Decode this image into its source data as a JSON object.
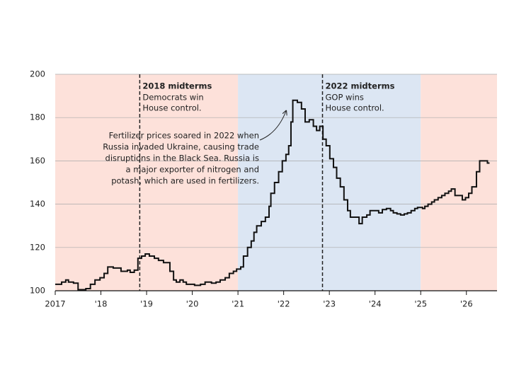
{
  "chart_data": {
    "type": "step-line",
    "xlim": [
      2017,
      2026.67
    ],
    "ylim": [
      100,
      200
    ],
    "yticks": [
      100,
      120,
      140,
      160,
      180,
      200
    ],
    "xticks": [
      {
        "value": 2017,
        "label": "2017"
      },
      {
        "value": 2018,
        "label": "'18"
      },
      {
        "value": 2019,
        "label": "'19"
      },
      {
        "value": 2020,
        "label": "'20"
      },
      {
        "value": 2021,
        "label": "'21"
      },
      {
        "value": 2022,
        "label": "'22"
      },
      {
        "value": 2023,
        "label": "'23"
      },
      {
        "value": 2024,
        "label": "'24"
      },
      {
        "value": 2025,
        "label": "'25"
      },
      {
        "value": 2026,
        "label": "'26"
      }
    ],
    "grid": true,
    "bands": [
      {
        "from": 2017,
        "to": 2021,
        "color": "#fde1da"
      },
      {
        "from": 2021,
        "to": 2025,
        "color": "#dce6f3"
      },
      {
        "from": 2025,
        "to": 2026.67,
        "color": "#fde1da"
      }
    ],
    "events": [
      {
        "x": 2018.85,
        "title": "2018 midterms",
        "lines": [
          "Democrats win",
          "House control."
        ]
      },
      {
        "x": 2022.85,
        "title": "2022 midterms",
        "lines": [
          "GOP wins",
          "House control."
        ]
      }
    ],
    "annotation": [
      "Fertilizer prices soared in 2022 when",
      "Russia invaded Ukraine, causing trade",
      "disruptions in the Black Sea. Russia is",
      "a major exporter of nitrogen and",
      "potash, which are used in fertilizers."
    ],
    "series": [
      {
        "color": "#111111",
        "x": [
          2017.0,
          2017.14,
          2017.23,
          2017.29,
          2017.4,
          2017.5,
          2017.67,
          2017.77,
          2017.87,
          2017.98,
          2018.07,
          2018.15,
          2018.27,
          2018.44,
          2018.58,
          2018.64,
          2018.73,
          2018.81,
          2018.89,
          2018.97,
          2019.06,
          2019.17,
          2019.26,
          2019.37,
          2019.51,
          2019.59,
          2019.65,
          2019.73,
          2019.8,
          2019.87,
          2020.05,
          2020.18,
          2020.28,
          2020.42,
          2020.52,
          2020.61,
          2020.72,
          2020.81,
          2020.9,
          2020.97,
          2021.06,
          2021.12,
          2021.21,
          2021.29,
          2021.35,
          2021.41,
          2021.51,
          2021.6,
          2021.68,
          2021.72,
          2021.8,
          2021.89,
          2021.97,
          2022.05,
          2022.11,
          2022.16,
          2022.2,
          2022.3,
          2022.39,
          2022.47,
          2022.56,
          2022.65,
          2022.72,
          2022.79,
          2022.86,
          2022.93,
          2023.01,
          2023.09,
          2023.16,
          2023.24,
          2023.32,
          2023.4,
          2023.46,
          2023.65,
          2023.72,
          2023.82,
          2023.89,
          2024.08,
          2024.16,
          2024.25,
          2024.34,
          2024.4,
          2024.48,
          2024.56,
          2024.64,
          2024.71,
          2024.79,
          2024.87,
          2024.93,
          2025.04,
          2025.09,
          2025.16,
          2025.24,
          2025.3,
          2025.38,
          2025.46,
          2025.53,
          2025.61,
          2025.67,
          2025.75,
          2025.91,
          2025.98,
          2026.05,
          2026.12,
          2026.22,
          2026.29,
          2026.4,
          2026.46
        ],
        "values": [
          103,
          104,
          105,
          104,
          103.5,
          100.5,
          101,
          103,
          105,
          106,
          108,
          111,
          110.5,
          109,
          109.5,
          108.5,
          109.5,
          115,
          116,
          117,
          116,
          115,
          114,
          113,
          109,
          105,
          104,
          105,
          104,
          103,
          102.5,
          103,
          104,
          103.5,
          104,
          105,
          106,
          108,
          109,
          110,
          111,
          116,
          120,
          123,
          127,
          130,
          132,
          134,
          139,
          145,
          150,
          155,
          160,
          163,
          167,
          178,
          188,
          187,
          184,
          178,
          179,
          176,
          174,
          176,
          170,
          167,
          161,
          157,
          152,
          148,
          142,
          137,
          134,
          131,
          134,
          135,
          137,
          136,
          137.5,
          138,
          137,
          136,
          135.5,
          135,
          135.5,
          136,
          137,
          138,
          138.5,
          138,
          139,
          140,
          141,
          142,
          143,
          144,
          145,
          146,
          147,
          144,
          142,
          143,
          145,
          148,
          155,
          160,
          160,
          159
        ]
      }
    ]
  }
}
